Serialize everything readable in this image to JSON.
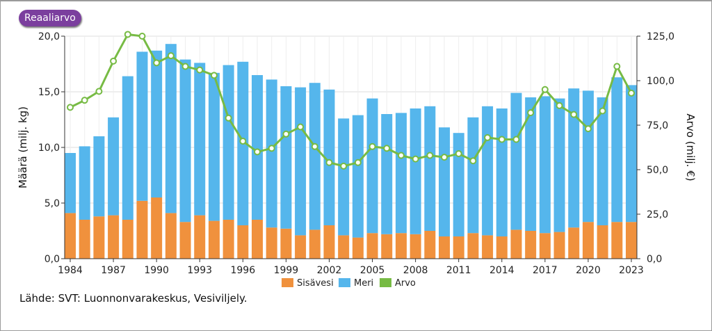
{
  "toggle": {
    "label": "Reaaliarvo"
  },
  "source": "Lähde: SVT: Luonnonvarakeskus, Vesiviljely.",
  "chart_data": {
    "type": "bar",
    "stacked": true,
    "years": [
      1984,
      1985,
      1986,
      1987,
      1988,
      1989,
      1990,
      1991,
      1992,
      1993,
      1994,
      1995,
      1996,
      1997,
      1998,
      1999,
      2000,
      2001,
      2002,
      2003,
      2004,
      2005,
      2006,
      2007,
      2008,
      2009,
      2010,
      2011,
      2012,
      2013,
      2014,
      2015,
      2016,
      2017,
      2018,
      2019,
      2020,
      2021,
      2022,
      2023
    ],
    "x_tick_labels": [
      "1984",
      "1987",
      "1990",
      "1993",
      "1996",
      "1999",
      "2002",
      "2005",
      "2008",
      "2011",
      "2014",
      "2017",
      "2020",
      "2023"
    ],
    "series": [
      {
        "name": "Sisävesi",
        "color": "#f0913d",
        "axis": "left",
        "values": [
          4.1,
          3.5,
          3.8,
          3.9,
          3.5,
          5.2,
          5.5,
          4.1,
          3.3,
          3.9,
          3.4,
          3.5,
          3.0,
          3.5,
          2.8,
          2.7,
          2.1,
          2.6,
          3.0,
          2.1,
          1.9,
          2.3,
          2.2,
          2.3,
          2.2,
          2.5,
          2.0,
          2.0,
          2.3,
          2.1,
          2.0,
          2.6,
          2.5,
          2.3,
          2.4,
          2.8,
          3.3,
          3.0,
          3.3,
          3.3
        ]
      },
      {
        "name": "Meri",
        "color": "#55b6ec",
        "axis": "left",
        "values": [
          5.4,
          6.6,
          7.2,
          8.8,
          12.9,
          13.4,
          13.2,
          15.2,
          14.6,
          13.7,
          13.3,
          13.9,
          14.7,
          13.0,
          13.3,
          12.8,
          13.3,
          13.2,
          12.2,
          10.5,
          11.0,
          12.1,
          10.8,
          10.8,
          11.3,
          11.2,
          9.8,
          9.3,
          10.4,
          11.6,
          11.5,
          12.3,
          12.0,
          12.3,
          12.0,
          12.5,
          11.8,
          11.5,
          13.0,
          12.3
        ]
      },
      {
        "name": "Arvo",
        "color": "#77bb44",
        "axis": "right",
        "type": "line",
        "values": [
          85,
          89,
          94,
          111,
          126,
          125,
          110,
          114,
          108,
          106,
          103,
          79,
          66,
          60,
          62,
          70,
          74,
          63,
          54,
          52,
          54,
          63,
          62,
          58,
          56,
          58,
          57,
          59,
          55,
          68,
          67,
          67,
          82,
          95,
          86,
          81,
          73,
          83,
          108,
          93
        ]
      }
    ],
    "y_left": {
      "label": "Määrä (milj. kg)",
      "min": 0,
      "max": 20,
      "ticks": [
        "0,0",
        "5,0",
        "10,0",
        "15,0",
        "20,0"
      ]
    },
    "y_right": {
      "label": "Arvo (milj. €)",
      "min": 0,
      "max": 125,
      "ticks": [
        "0,0",
        "25,0",
        "50,0",
        "75,0",
        "100,0",
        "125,0"
      ]
    },
    "legend": {
      "position": "bottom",
      "items": [
        "Sisävesi",
        "Meri",
        "Arvo"
      ]
    },
    "grid": true
  }
}
